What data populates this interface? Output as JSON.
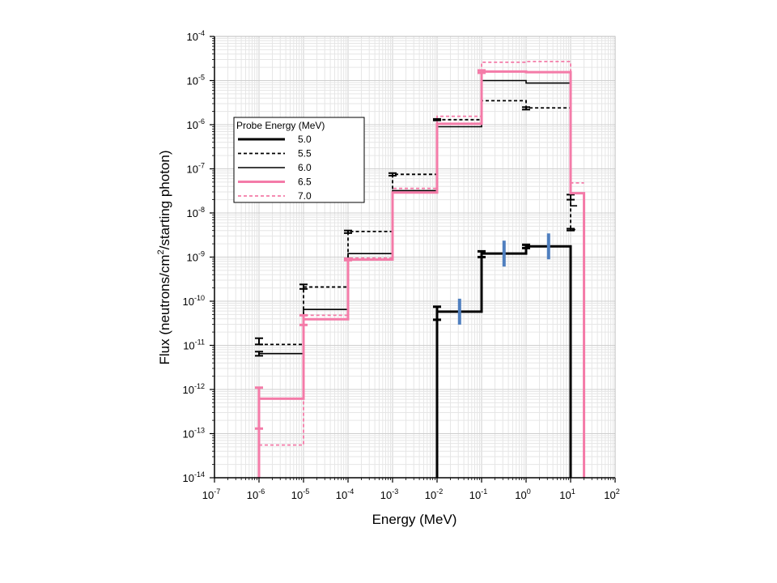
{
  "chart_data": {
    "type": "line",
    "step": true,
    "title": "",
    "xlabel": "Energy (MeV)",
    "ylabel_parts": [
      "Flux (neutrons/cm",
      "2",
      "/starting photon)"
    ],
    "xscale": "log",
    "yscale": "log",
    "xlim_exp": [
      -7,
      2
    ],
    "ylim_exp": [
      -14,
      -4
    ],
    "x_tick_exponents": [
      -7,
      -6,
      -5,
      -4,
      -3,
      -2,
      -1,
      0,
      1,
      2
    ],
    "y_tick_exponents": [
      -14,
      -13,
      -12,
      -11,
      -10,
      -9,
      -8,
      -7,
      -6,
      -5,
      -4
    ],
    "tick_base": "10",
    "grid": true,
    "legend": {
      "title": "Probe Energy (MeV)",
      "placement": "upper-left",
      "entries": [
        "5.0",
        "5.5",
        "6.0",
        "6.5",
        "7.0"
      ]
    },
    "series": [
      {
        "name": "5.0",
        "color": "#000000",
        "style": "thick-solid",
        "steps": [
          {
            "x0": 0.01,
            "x1": 0.1,
            "y": 5.8e-11
          },
          {
            "x0": 0.1,
            "x1": 1,
            "y": 1.2e-09
          },
          {
            "x0": 1,
            "x1": 10,
            "y": 1.75e-09
          }
        ],
        "drop_low_x": 0.01,
        "drop_high_x": 10,
        "error_bars": [
          {
            "x": 0.01,
            "y": [
              3.8e-11,
              7.5e-11
            ]
          },
          {
            "x": 0.1,
            "y": [
              1e-09,
              1.35e-09
            ]
          },
          {
            "x": 1,
            "y": [
              1.6e-09,
              1.9e-09
            ]
          }
        ]
      },
      {
        "name": "5.5",
        "color": "#000000",
        "style": "dashed",
        "steps": [
          {
            "x0": 1e-06,
            "x1": 1e-05,
            "y": 1.05e-11
          },
          {
            "x0": 1e-05,
            "x1": 0.0001,
            "y": 2.1e-10
          },
          {
            "x0": 0.0001,
            "x1": 0.001,
            "y": 3.8e-09
          },
          {
            "x0": 0.001,
            "x1": 0.01,
            "y": 7.5e-08
          },
          {
            "x0": 0.01,
            "x1": 0.1,
            "y": 1.3e-06
          },
          {
            "x0": 0.1,
            "x1": 1,
            "y": 3.5e-06
          },
          {
            "x0": 1,
            "x1": 10,
            "y": 2.4e-06
          },
          {
            "x0": 10,
            "x1": 14,
            "y": 4.2e-09
          }
        ],
        "error_bars": [
          {
            "x": 1e-06,
            "y": [
              1.05e-11,
              1.45e-11
            ]
          },
          {
            "x": 1e-05,
            "y": [
              1.9e-10,
              2.4e-10
            ]
          },
          {
            "x": 0.0001,
            "y": [
              3.5e-09,
              4e-09
            ]
          },
          {
            "x": 0.001,
            "y": [
              7e-08,
              8e-08
            ]
          },
          {
            "x": 0.01,
            "y": [
              1.25e-06,
              1.35e-06
            ]
          },
          {
            "x": 1,
            "y": [
              2.2e-06,
              2.5e-06
            ]
          },
          {
            "x": 10,
            "y": [
              4e-09,
              4.4e-09
            ]
          }
        ]
      },
      {
        "name": "6.0",
        "color": "#000000",
        "style": "thin-solid",
        "steps": [
          {
            "x0": 1e-06,
            "x1": 1e-05,
            "y": 6.5e-12
          },
          {
            "x0": 1e-05,
            "x1": 0.0001,
            "y": 6.5e-11
          },
          {
            "x0": 0.0001,
            "x1": 0.001,
            "y": 1.2e-09
          },
          {
            "x0": 0.001,
            "x1": 0.01,
            "y": 3.2e-08
          },
          {
            "x0": 0.01,
            "x1": 0.1,
            "y": 9e-07
          },
          {
            "x0": 0.1,
            "x1": 1,
            "y": 1e-05
          },
          {
            "x0": 1,
            "x1": 10,
            "y": 8.8e-06
          },
          {
            "x0": 10,
            "x1": 14,
            "y": 1.45e-08
          }
        ],
        "error_bars": [
          {
            "x": 1e-06,
            "y": [
              5.8e-12,
              7.2e-12
            ]
          },
          {
            "x": 10,
            "y": [
              2e-08,
              2.6e-08
            ]
          }
        ]
      },
      {
        "name": "6.5",
        "color": "#f47ba8",
        "style": "thick-solid",
        "steps": [
          {
            "x0": 1e-06,
            "x1": 1e-05,
            "y": 6.2e-13
          },
          {
            "x0": 1e-05,
            "x1": 0.0001,
            "y": 3.9e-11
          },
          {
            "x0": 0.0001,
            "x1": 0.001,
            "y": 8.8e-10
          },
          {
            "x0": 0.001,
            "x1": 0.01,
            "y": 2.9e-08
          },
          {
            "x0": 0.01,
            "x1": 0.1,
            "y": 1.05e-06
          },
          {
            "x0": 0.1,
            "x1": 1,
            "y": 1.6e-05
          },
          {
            "x0": 1,
            "x1": 10,
            "y": 1.55e-05
          },
          {
            "x0": 10,
            "x1": 20,
            "y": 2.8e-08
          }
        ],
        "drop_low_x": 1e-06,
        "drop_high_x": 20,
        "error_bars": [
          {
            "x": 1e-06,
            "y": [
              1.3e-13,
              1.1e-12
            ]
          },
          {
            "x": 1e-05,
            "y": [
              2.9e-11,
              4.8e-11
            ]
          },
          {
            "x": 0.0001,
            "y": [
              8.5e-10,
              9.2e-10
            ]
          },
          {
            "x": 0.1,
            "y": [
              1.5e-05,
              1.7e-05
            ]
          }
        ]
      },
      {
        "name": "7.0",
        "color": "#f47ba8",
        "style": "dashed",
        "steps": [
          {
            "x0": 1e-06,
            "x1": 1e-05,
            "y": 5.5e-14
          },
          {
            "x0": 1e-05,
            "x1": 0.0001,
            "y": 4.8e-11
          },
          {
            "x0": 0.0001,
            "x1": 0.001,
            "y": 9.5e-10
          },
          {
            "x0": 0.001,
            "x1": 0.01,
            "y": 3.6e-08
          },
          {
            "x0": 0.01,
            "x1": 0.1,
            "y": 1.55e-06
          },
          {
            "x0": 0.1,
            "x1": 1,
            "y": 2.6e-05
          },
          {
            "x0": 1,
            "x1": 10,
            "y": 2.7e-05
          },
          {
            "x0": 10,
            "x1": 20,
            "y": 4.8e-08
          }
        ]
      }
    ],
    "markers": {
      "color": "#4f7fbf",
      "points": [
        {
          "x": 0.032,
          "y": 5.8e-11
        },
        {
          "x": 0.32,
          "y": 1.2e-09
        },
        {
          "x": 3.2,
          "y": 1.75e-09
        }
      ]
    }
  }
}
